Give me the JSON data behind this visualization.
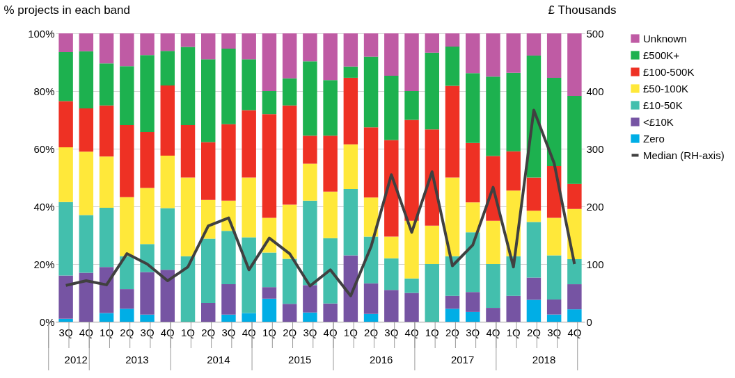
{
  "chart_data": {
    "type": "bar",
    "stacked": true,
    "ylabel": "% projects in each band",
    "y2label": "£ Thousands",
    "categories": [
      "3Q",
      "4Q",
      "1Q",
      "2Q",
      "3Q",
      "4Q",
      "1Q",
      "2Q",
      "3Q",
      "4Q",
      "1Q",
      "2Q",
      "3Q",
      "4Q",
      "1Q",
      "2Q",
      "3Q",
      "4Q",
      "1Q",
      "2Q",
      "3Q",
      "4Q",
      "1Q",
      "2Q",
      "3Q",
      "4Q"
    ],
    "annotations": [
      "2012",
      "2013",
      "2014",
      "2015",
      "2016",
      "2017",
      "2018"
    ],
    "ylim": [
      0,
      100
    ],
    "yticks": [
      {
        "value": 0,
        "label": "0%"
      },
      {
        "value": 20,
        "label": "20%"
      },
      {
        "value": 40,
        "label": "40%"
      },
      {
        "value": 60,
        "label": "60%"
      },
      {
        "value": 80,
        "label": "80%"
      },
      {
        "value": 100,
        "label": "100%"
      }
    ],
    "y2lim": [
      0,
      500
    ],
    "y2ticks": [
      0,
      100,
      200,
      300,
      400,
      500
    ],
    "grid": "y",
    "legend": "right",
    "series": [
      {
        "name": "Zero",
        "color": "#00aee6",
        "values": [
          1,
          0,
          3,
          4.5,
          2.5,
          0,
          0,
          0,
          2.5,
          3,
          8,
          0,
          3.2,
          0,
          0,
          2.7,
          0,
          0,
          0,
          4.5,
          3.4,
          0,
          0,
          7.6,
          2.5,
          4.3
        ]
      },
      {
        "name": "<£10K",
        "color": "#7654a3",
        "values": [
          15,
          17,
          16,
          6.8,
          14.7,
          18,
          0,
          6.5,
          10.5,
          0,
          4,
          6.2,
          9.5,
          6.3,
          23,
          10.6,
          11,
          10,
          0,
          4.5,
          6.9,
          4.8,
          9,
          7.7,
          5.2,
          8.7
        ]
      },
      {
        "name": "£10-50K",
        "color": "#43bfad",
        "values": [
          25.5,
          20,
          20.5,
          11.4,
          9.7,
          21.4,
          22.7,
          22.3,
          18.5,
          26.3,
          12,
          15.6,
          29.3,
          22.7,
          23,
          16.2,
          11,
          5,
          20,
          13.7,
          20.7,
          15.2,
          13.7,
          19.3,
          15.3,
          8.7
        ]
      },
      {
        "name": "£50-100K",
        "color": "#ffe83a",
        "values": [
          19,
          22,
          17.8,
          20.5,
          19.5,
          18.2,
          27.3,
          13.4,
          10.5,
          20.7,
          12,
          18.8,
          12.8,
          16.1,
          15.5,
          13.6,
          7.5,
          20,
          13.3,
          27.3,
          10.4,
          15,
          22.8,
          3.9,
          13,
          17.4
        ]
      },
      {
        "name": "£100-500K",
        "color": "#ee3124",
        "values": [
          16,
          15,
          17.7,
          25,
          19.4,
          24.3,
          18.2,
          20.1,
          26.5,
          23.4,
          36,
          34.4,
          9.7,
          19.4,
          23.1,
          24.3,
          33.5,
          35,
          33.4,
          31.8,
          20.6,
          22.5,
          13.6,
          11.5,
          18,
          8.7
        ]
      },
      {
        "name": "£500K+",
        "color": "#1db14f",
        "values": [
          17,
          19.8,
          14.6,
          20.4,
          26.7,
          12,
          27.1,
          28.7,
          26.2,
          17.6,
          8,
          9.4,
          25.8,
          19.3,
          3.9,
          24.5,
          22.3,
          10,
          26.6,
          13.6,
          24.2,
          27.5,
          27.2,
          42.3,
          30.6,
          30.5
        ]
      },
      {
        "name": "Unknown",
        "color": "#bf5ba4",
        "values": [
          6.5,
          6.2,
          10.4,
          11.4,
          7.5,
          6.1,
          4.7,
          9,
          5.3,
          9,
          20,
          15.6,
          9.7,
          16.2,
          11.5,
          8.1,
          14.7,
          20,
          6.7,
          4.6,
          13.8,
          15,
          13.7,
          7.7,
          15.4,
          21.7
        ]
      },
      {
        "name": "Median (RH-axis)",
        "type": "line",
        "axis": "y2",
        "color": "#404040",
        "values": [
          63,
          71,
          64,
          118,
          100,
          71,
          95,
          166,
          180,
          90,
          145,
          118,
          62,
          90,
          45,
          130,
          255,
          155,
          260,
          97,
          133,
          233,
          95,
          367,
          275,
          100
        ]
      }
    ]
  }
}
